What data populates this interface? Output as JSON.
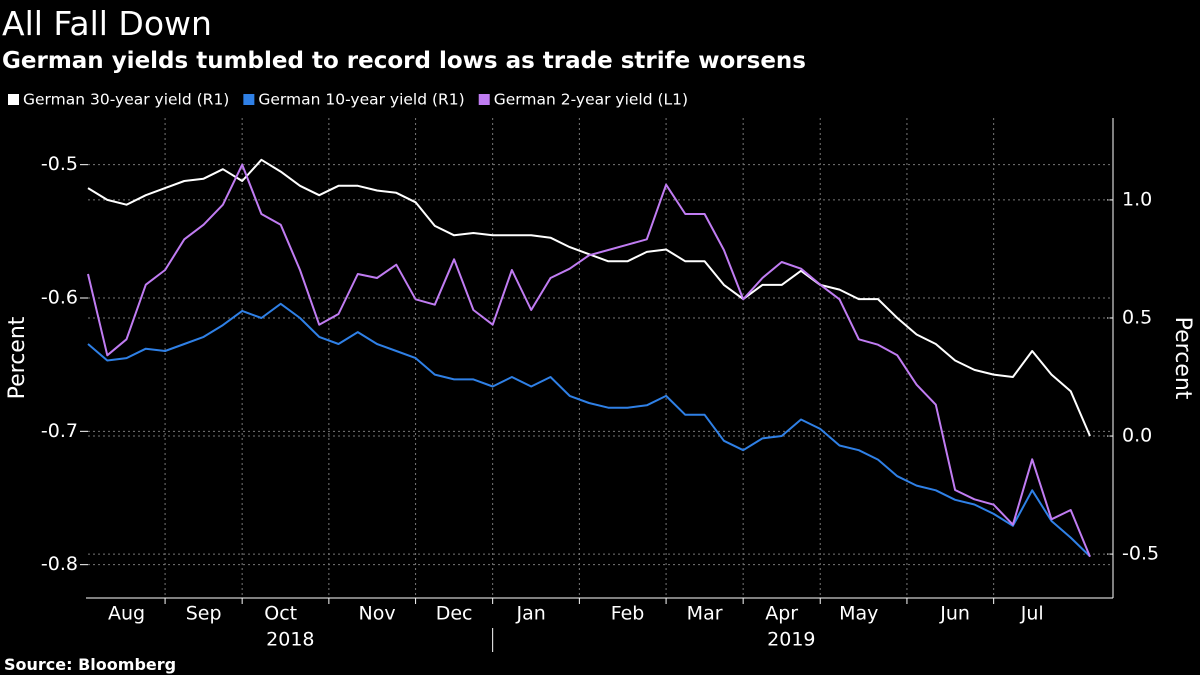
{
  "chart_data": {
    "type": "line",
    "title": "All Fall Down",
    "subtitle": "German yields tumbled to record lows as trade strife worsens",
    "source": "Source: Bloomberg",
    "ylabel": "Percent",
    "y2label": "Percent",
    "categories": [
      null,
      null,
      "Aug",
      null,
      null,
      null,
      "Sep",
      null,
      null,
      null,
      "Oct",
      null,
      null,
      null,
      null,
      "Nov",
      null,
      null,
      null,
      "Dec",
      null,
      null,
      null,
      "Jan",
      null,
      null,
      null,
      null,
      "Feb",
      null,
      null,
      null,
      "Mar",
      null,
      null,
      null,
      "Apr",
      null,
      null,
      null,
      "May",
      null,
      null,
      null,
      null,
      "Jun",
      null,
      null,
      null,
      "Jul",
      null,
      null,
      null
    ],
    "years": [
      "2018",
      "2019"
    ],
    "ylim": [
      -0.825,
      -0.465
    ],
    "yticks": [
      -0.5,
      -0.6,
      -0.7,
      -0.8
    ],
    "y2lim": [
      -0.686,
      1.347
    ],
    "y2ticks": [
      {
        "value": 1.0,
        "label": "1.0"
      },
      0.5,
      {
        "value": 0.0,
        "label": "0.0"
      },
      -0.5
    ],
    "grid": true,
    "series": [
      {
        "name": "German 30-year yield (R1)",
        "color": "#ffffff",
        "axis": "y2",
        "values": [
          1.05,
          1.0,
          0.98,
          1.02,
          1.05,
          1.08,
          1.09,
          1.13,
          1.08,
          1.17,
          1.12,
          1.06,
          1.02,
          1.06,
          1.06,
          1.04,
          1.03,
          0.99,
          0.89,
          0.85,
          0.86,
          0.85,
          0.85,
          0.85,
          0.84,
          0.8,
          0.77,
          0.74,
          0.74,
          0.78,
          0.79,
          0.74,
          0.74,
          0.64,
          0.58,
          0.64,
          0.64,
          0.7,
          0.64,
          0.62,
          0.58,
          0.58,
          0.5,
          0.43,
          0.39,
          0.32,
          0.28,
          0.26,
          0.25,
          0.36,
          0.26,
          0.19,
          0.0
        ]
      },
      {
        "name": "German 10-year yield (R1)",
        "color": "#2f80e6",
        "axis": "y2",
        "values": [
          0.39,
          0.32,
          0.33,
          0.37,
          0.36,
          0.39,
          0.42,
          0.47,
          0.53,
          0.5,
          0.56,
          0.5,
          0.42,
          0.39,
          0.44,
          0.39,
          0.36,
          0.33,
          0.26,
          0.24,
          0.24,
          0.21,
          0.25,
          0.21,
          0.25,
          0.17,
          0.14,
          0.12,
          0.12,
          0.13,
          0.17,
          0.09,
          0.09,
          -0.02,
          -0.06,
          -0.01,
          0.0,
          0.07,
          0.03,
          -0.04,
          -0.06,
          -0.1,
          -0.17,
          -0.21,
          -0.23,
          -0.27,
          -0.29,
          -0.33,
          -0.38,
          -0.23,
          -0.36,
          -0.43,
          -0.51
        ]
      },
      {
        "name": "German 2-year yield (L1)",
        "color": "#c07cf2",
        "axis": "y",
        "values": [
          -0.582,
          -0.643,
          -0.631,
          -0.59,
          -0.579,
          -0.556,
          -0.545,
          -0.53,
          -0.5,
          -0.537,
          -0.545,
          -0.579,
          -0.62,
          -0.612,
          -0.582,
          -0.585,
          -0.575,
          -0.601,
          -0.605,
          -0.571,
          -0.609,
          -0.62,
          -0.579,
          -0.609,
          -0.585,
          -0.578,
          -0.568,
          -0.564,
          -0.56,
          -0.556,
          -0.515,
          -0.537,
          -0.537,
          -0.564,
          -0.601,
          -0.585,
          -0.573,
          -0.578,
          -0.59,
          -0.601,
          -0.631,
          -0.635,
          -0.643,
          -0.665,
          -0.68,
          -0.744,
          -0.751,
          -0.755,
          -0.77,
          -0.721,
          -0.766,
          -0.759,
          -0.794
        ]
      }
    ]
  }
}
